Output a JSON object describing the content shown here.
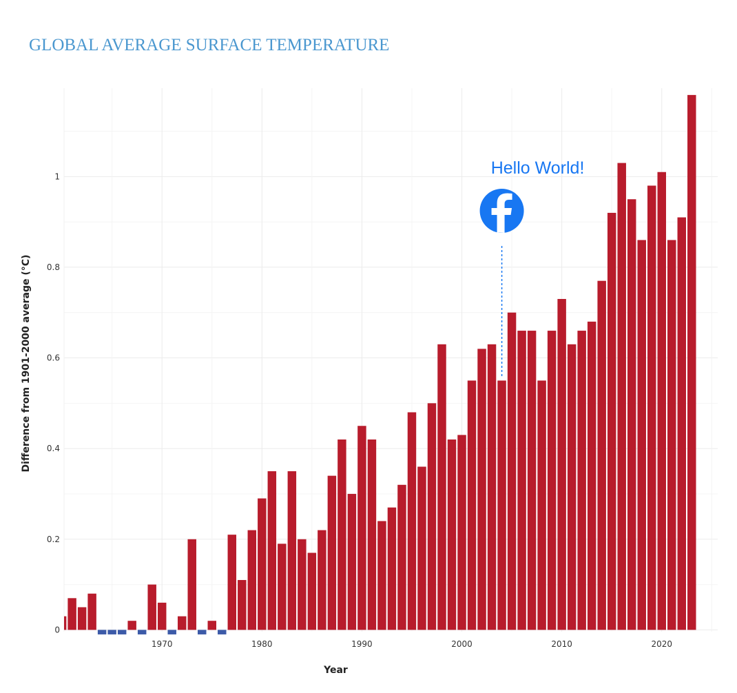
{
  "chart_data": {
    "type": "bar",
    "title": "GLOBAL AVERAGE SURFACE TEMPERATURE",
    "xlabel": "Year",
    "ylabel": "Difference from 1901-2000 average (°C)",
    "x": [
      1960,
      1961,
      1962,
      1963,
      1964,
      1965,
      1966,
      1967,
      1968,
      1969,
      1970,
      1971,
      1972,
      1973,
      1974,
      1975,
      1976,
      1977,
      1978,
      1979,
      1980,
      1981,
      1982,
      1983,
      1984,
      1985,
      1986,
      1987,
      1988,
      1989,
      1990,
      1991,
      1992,
      1993,
      1994,
      1995,
      1996,
      1997,
      1998,
      1999,
      2000,
      2001,
      2002,
      2003,
      2004,
      2005,
      2006,
      2007,
      2008,
      2009,
      2010,
      2011,
      2012,
      2013,
      2014,
      2015,
      2016,
      2017,
      2018,
      2019,
      2020,
      2021,
      2022,
      2023
    ],
    "values": [
      0.03,
      0.07,
      0.05,
      0.08,
      -0.01,
      -0.01,
      -0.01,
      0.02,
      -0.01,
      0.1,
      0.06,
      -0.01,
      0.03,
      0.2,
      -0.01,
      0.02,
      -0.01,
      0.21,
      0.11,
      0.22,
      0.29,
      0.35,
      0.19,
      0.35,
      0.2,
      0.17,
      0.22,
      0.34,
      0.42,
      0.3,
      0.45,
      0.42,
      0.24,
      0.27,
      0.32,
      0.48,
      0.36,
      0.5,
      0.63,
      0.42,
      0.43,
      0.55,
      0.62,
      0.63,
      0.55,
      0.7,
      0.66,
      0.66,
      0.55,
      0.66,
      0.73,
      0.63,
      0.66,
      0.68,
      0.77,
      0.92,
      1.03,
      0.95,
      0.86,
      0.98,
      1.01,
      0.86,
      0.91,
      1.18
    ],
    "x_ticks": [
      "1970",
      "1980",
      "1990",
      "2000",
      "2010",
      "2020"
    ],
    "x_tick_values": [
      1970,
      1980,
      1990,
      2000,
      2010,
      2020
    ],
    "y_ticks": [
      "0",
      "0.2",
      "0.4",
      "0.6",
      "0.8",
      "1"
    ],
    "y_tick_values": [
      0,
      0.2,
      0.4,
      0.6,
      0.8,
      1
    ],
    "xlim": [
      1960.2,
      2025.6
    ],
    "ylim": [
      -0.004,
      1.195
    ],
    "grid": true,
    "colors": {
      "positive": "#b81c2c",
      "negative": "#3c5aa8",
      "annotation": "#1877f2",
      "title": "#4a97cf"
    },
    "annotation": {
      "text": "Hello World!",
      "icon": "facebook-icon",
      "x": 2004,
      "y": 0.55
    }
  }
}
